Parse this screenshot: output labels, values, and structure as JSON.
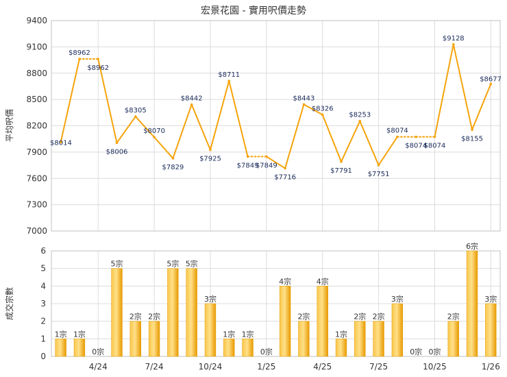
{
  "chart_data": [
    {
      "type": "line",
      "title": "宏景花園 - 實用呎價走勢",
      "ylabel": "平均呎價",
      "ylim": [
        7000,
        9400
      ],
      "yticks": [
        7000,
        7300,
        7600,
        7900,
        8200,
        8500,
        8800,
        9100,
        9400
      ],
      "grid": true,
      "color": "#f5a30a",
      "x": [
        "2024-02",
        "2024-03",
        "2024-04",
        "2024-05",
        "2024-06",
        "2024-07",
        "2024-08",
        "2024-09",
        "2024-10",
        "2024-11",
        "2024-12",
        "2025-01",
        "2025-02",
        "2025-03",
        "2025-04",
        "2025-05",
        "2025-06",
        "2025-07",
        "2025-08",
        "2025-09",
        "2025-10",
        "2025-11",
        "2025-12",
        "2026-01"
      ],
      "values": [
        8014,
        8962,
        8962,
        8006,
        8305,
        8070,
        7829,
        8442,
        7925,
        8711,
        7849,
        7849,
        7716,
        8443,
        8326,
        7791,
        8253,
        7751,
        8074,
        8074,
        8074,
        9128,
        8155,
        8677
      ],
      "point_labels": [
        "$8014",
        "$8962",
        "$8962",
        "$8006",
        "$8305",
        "$8070",
        "$7829",
        "$8442",
        "$7925",
        "$8711",
        "$7849",
        "$7849",
        "$7716",
        "$8443",
        "$8326",
        "$7791",
        "$8253",
        "$7751",
        "$8074",
        "$8074",
        "$8074",
        "$9128",
        "$8155",
        "$8677"
      ]
    },
    {
      "type": "bar",
      "ylabel": "成交宗數",
      "ylim": [
        0,
        6
      ],
      "yticks": [
        0,
        1,
        2,
        3,
        4,
        5,
        6
      ],
      "grid": true,
      "color": "#f5b820",
      "categories": [
        "2024-02",
        "2024-03",
        "2024-04",
        "2024-05",
        "2024-06",
        "2024-07",
        "2024-08",
        "2024-09",
        "2024-10",
        "2024-11",
        "2024-12",
        "2025-01",
        "2025-02",
        "2025-03",
        "2025-04",
        "2025-05",
        "2025-06",
        "2025-07",
        "2025-08",
        "2025-09",
        "2025-10",
        "2025-11",
        "2025-12",
        "2026-01"
      ],
      "values": [
        1,
        1,
        0,
        5,
        2,
        2,
        5,
        5,
        3,
        1,
        1,
        0,
        4,
        2,
        4,
        1,
        2,
        2,
        3,
        0,
        0,
        2,
        6,
        3
      ],
      "bar_labels": [
        "1宗",
        "1宗",
        "0宗",
        "5宗",
        "2宗",
        "2宗",
        "5宗",
        "5宗",
        "3宗",
        "1宗",
        "1宗",
        "0宗",
        "4宗",
        "2宗",
        "4宗",
        "1宗",
        "2宗",
        "2宗",
        "3宗",
        "0宗",
        "0宗",
        "2宗",
        "6宗",
        "3宗"
      ]
    }
  ],
  "x_ticks": [
    {
      "label": "4/24",
      "index": 2
    },
    {
      "label": "7/24",
      "index": 5
    },
    {
      "label": "10/24",
      "index": 8
    },
    {
      "label": "1/25",
      "index": 11
    },
    {
      "label": "4/25",
      "index": 14
    },
    {
      "label": "7/25",
      "index": 17
    },
    {
      "label": "10/25",
      "index": 20
    },
    {
      "label": "1/26",
      "index": 23
    }
  ]
}
